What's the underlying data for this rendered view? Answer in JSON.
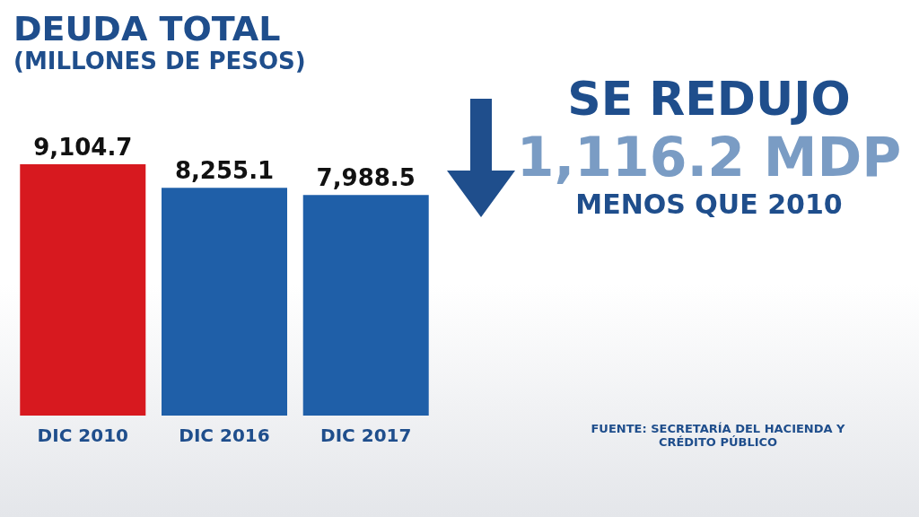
{
  "chart_data": {
    "type": "bar",
    "title": "DEUDA TOTAL",
    "subtitle": "(MILLONES DE PESOS)",
    "categories": [
      "DIC 2010",
      "DIC 2016",
      "DIC 2017"
    ],
    "values": [
      9104.7,
      8255.1,
      7988.5
    ],
    "colors": [
      "#d7191f",
      "#1f5fa8",
      "#1f5fa8"
    ],
    "value_labels": [
      "9,104.7",
      "8,255.1",
      "7,988.5"
    ],
    "annotations": [
      "SE REDUJO",
      "1,116.2 MDP",
      "MENOS QUE 2010",
      "FUENTE: SECRETARÍA DEL HACIENDA Y CRÉDITO PÚBLICO"
    ]
  }
}
